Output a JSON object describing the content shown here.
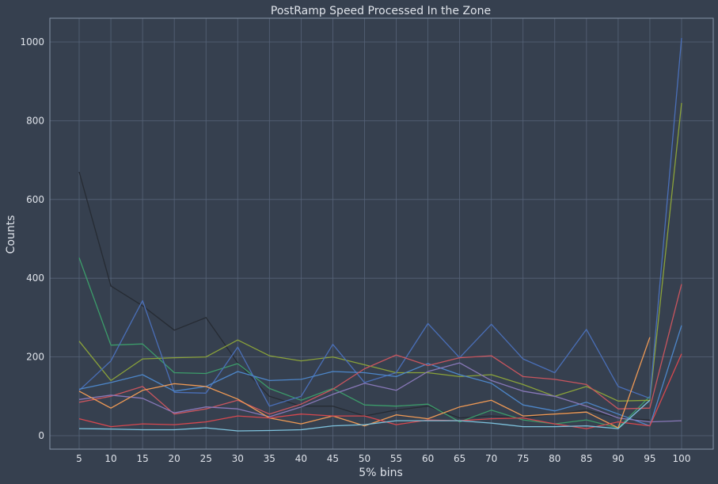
{
  "chart_data": {
    "type": "line",
    "title": "PostRamp Speed Processed In the Zone",
    "xlabel": "5% bins",
    "ylabel": "Counts",
    "x": [
      5,
      10,
      15,
      20,
      25,
      30,
      35,
      40,
      45,
      50,
      55,
      60,
      65,
      70,
      75,
      80,
      85,
      90,
      95,
      100
    ],
    "xticks": [
      "5",
      "10",
      "15",
      "20",
      "25",
      "30",
      "35",
      "40",
      "45",
      "50",
      "55",
      "60",
      "65",
      "70",
      "75",
      "80",
      "85",
      "90",
      "95",
      "100"
    ],
    "yticks": [
      "0",
      "200",
      "400",
      "600",
      "800",
      "1000"
    ],
    "ylim": [
      -35,
      1060
    ],
    "grid": true,
    "series": [
      {
        "color": "#262b33",
        "values": [
          670,
          380,
          330,
          268,
          300,
          185,
          100,
          75,
          75,
          50,
          65,
          75,
          45,
          50,
          45,
          55,
          65,
          45,
          40,
          null
        ]
      },
      {
        "color": "#3c9c6a",
        "values": [
          452,
          230,
          233,
          160,
          158,
          183,
          120,
          90,
          120,
          78,
          75,
          80,
          35,
          65,
          40,
          30,
          40,
          20,
          100,
          null
        ]
      },
      {
        "color": "#8aa23a",
        "values": [
          240,
          140,
          195,
          198,
          200,
          243,
          203,
          190,
          200,
          180,
          160,
          160,
          150,
          155,
          130,
          100,
          125,
          88,
          90,
          845
        ]
      },
      {
        "color": "#4a6fb8",
        "values": [
          115,
          190,
          343,
          110,
          108,
          225,
          75,
          100,
          232,
          135,
          160,
          285,
          198,
          283,
          195,
          160,
          270,
          125,
          95,
          1010
        ]
      },
      {
        "color": "#4d86c9",
        "values": [
          118,
          135,
          155,
          113,
          125,
          163,
          140,
          143,
          163,
          160,
          150,
          183,
          155,
          133,
          78,
          63,
          85,
          55,
          25,
          280
        ]
      },
      {
        "color": "#c9555e",
        "values": [
          85,
          100,
          125,
          55,
          68,
          90,
          55,
          80,
          118,
          170,
          205,
          178,
          198,
          203,
          150,
          143,
          130,
          68,
          70,
          385
        ]
      },
      {
        "color": "#8878b8",
        "values": [
          92,
          103,
          95,
          58,
          73,
          68,
          48,
          73,
          105,
          133,
          115,
          163,
          185,
          140,
          113,
          100,
          75,
          45,
          35,
          38
        ]
      },
      {
        "color": "#f09a55",
        "values": [
          113,
          70,
          115,
          132,
          125,
          93,
          45,
          30,
          50,
          25,
          53,
          43,
          73,
          90,
          50,
          55,
          60,
          20,
          250,
          null
        ]
      },
      {
        "color": "#d8484f",
        "values": [
          43,
          23,
          30,
          28,
          35,
          50,
          45,
          55,
          50,
          50,
          28,
          40,
          38,
          43,
          45,
          30,
          18,
          35,
          25,
          208
        ]
      },
      {
        "color": "#7ec3de",
        "values": [
          18,
          17,
          15,
          15,
          20,
          12,
          13,
          15,
          25,
          28,
          38,
          38,
          38,
          32,
          23,
          23,
          25,
          18,
          90,
          null
        ]
      }
    ]
  }
}
